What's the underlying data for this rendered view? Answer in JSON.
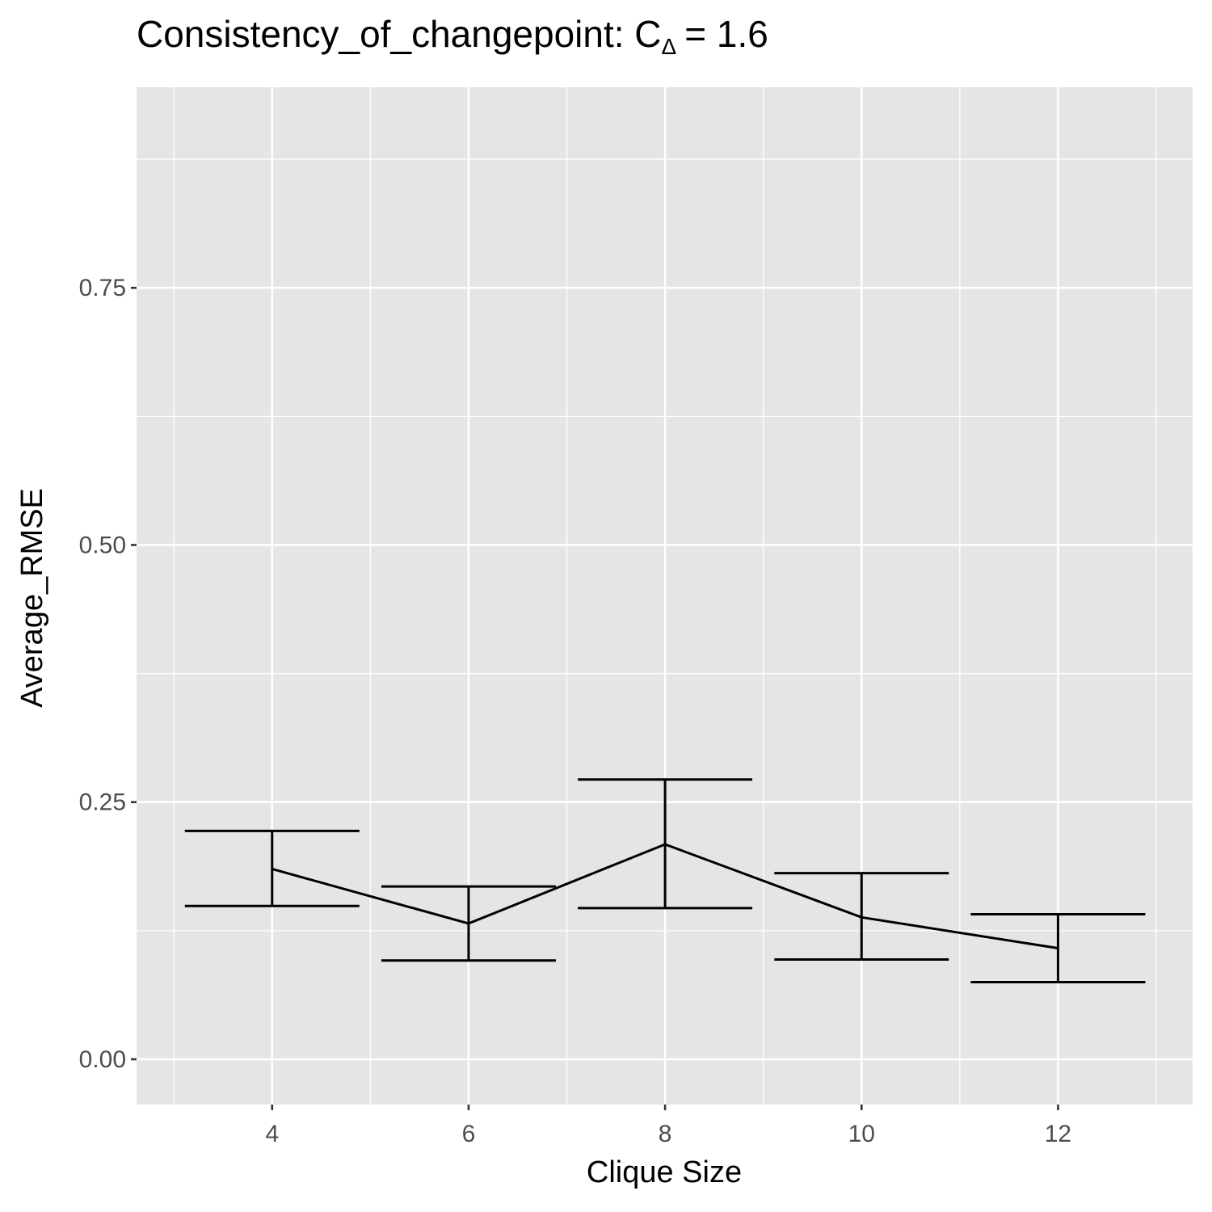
{
  "chart_data": {
    "type": "errorbar-line",
    "title": {
      "text": "Consistency_of_changepoint: C",
      "subscript": "Δ",
      "suffix": "= 1.6"
    },
    "x_label": "Clique Size",
    "y_label": "Average_RMSE",
    "x": [
      4,
      6,
      8,
      10,
      12
    ],
    "values": [
      0.185,
      0.132,
      0.209,
      0.138,
      0.108
    ],
    "lower": [
      0.149,
      0.096,
      0.147,
      0.097,
      0.075
    ],
    "upper": [
      0.222,
      0.168,
      0.272,
      0.181,
      0.141
    ],
    "color": "#000000",
    "xlim": [
      2.62,
      13.37
    ],
    "ylim": [
      -0.044,
      0.945
    ],
    "xticks": [
      4,
      6,
      8,
      10,
      12
    ],
    "yticks": [
      {
        "value": 0,
        "label": "0.00"
      },
      0.25,
      {
        "value": 0.5,
        "label": "0.50"
      },
      0.75
    ],
    "x_minor_grid": [
      3,
      5,
      7,
      9,
      11,
      13
    ],
    "y_minor_grid": [
      0.125,
      0.375,
      0.625,
      0.875
    ],
    "grid": true
  }
}
